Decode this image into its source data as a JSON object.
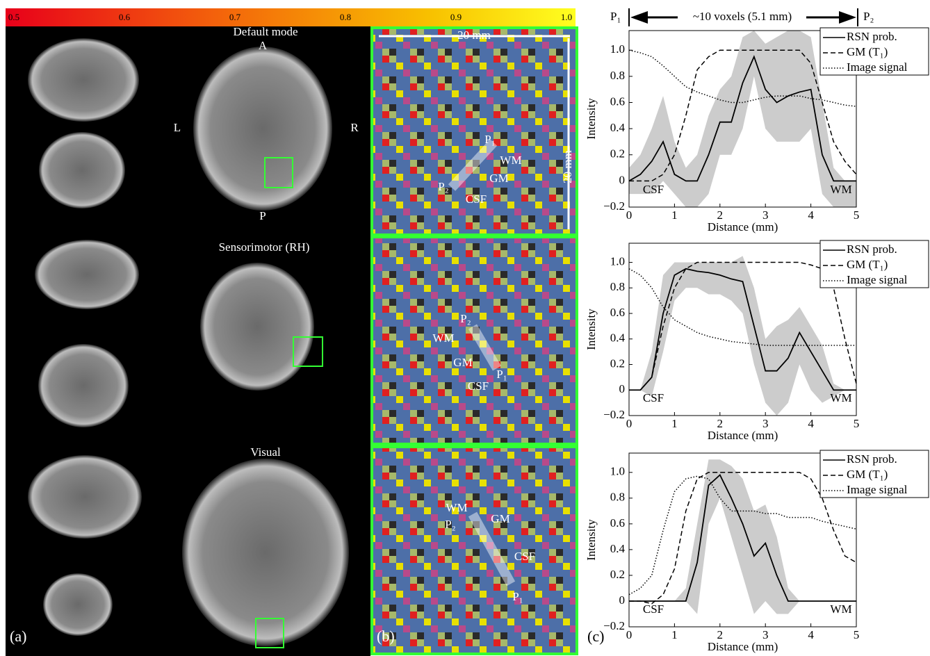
{
  "colorbar": {
    "lim": [
      0.5,
      1
    ],
    "ticks": [
      0.5,
      0.6,
      0.7,
      0.8,
      0.9,
      {
        "value": 1,
        "label": "1.0"
      }
    ]
  },
  "panel_a": {
    "label": "(a)",
    "default_mode": "Default mode",
    "sensorimotor": "Sensorimotor (RH)",
    "visual": "Visual",
    "anterior": "A",
    "posterior": "P",
    "left": "L",
    "right": "R"
  },
  "panel_b": {
    "label": "(b)",
    "scale_x": "20 mm",
    "scale_y": "20 mm",
    "panels": [
      {
        "p1": "P₁",
        "p2": "P₂",
        "wm": "WM",
        "gm": "GM",
        "csf": "CSF"
      },
      {
        "p1": "P₁",
        "p2": "P₂",
        "wm": "WM",
        "gm": "GM",
        "csf": "CSF"
      },
      {
        "p1": "P₁",
        "p2": "P₂",
        "wm": "WM",
        "gm": "GM",
        "csf": "CSF"
      }
    ]
  },
  "panel_c": {
    "label": "(c)",
    "p1": "P₁",
    "p2": "P₂",
    "span": "~10 voxels (5.1 mm)"
  },
  "chart_data": [
    {
      "type": "line",
      "x_label": "Distance (mm)",
      "y_label": "Intensity",
      "annotations": [
        "CSF",
        "WM"
      ],
      "x": [
        0,
        0.25,
        0.5,
        0.75,
        1,
        1.25,
        1.5,
        1.75,
        2,
        2.25,
        2.5,
        2.75,
        3,
        3.25,
        3.5,
        3.75,
        4,
        4.25,
        4.5,
        4.75,
        5
      ],
      "xlim": [
        0,
        5
      ],
      "xticks": [
        0,
        1,
        2,
        3,
        4,
        5
      ],
      "ylim": [
        -0.2,
        1.15
      ],
      "yticks": [
        {
          "value": -0.2,
          "label": "−0.2"
        },
        0,
        0.2,
        0.4,
        0.6,
        0.8,
        {
          "value": 1,
          "label": "1.0"
        }
      ],
      "band": {
        "color": "#cccccc",
        "lower": [
          -0.1,
          -0.1,
          -0.1,
          0,
          -0.1,
          -0.2,
          -0.2,
          -0.1,
          0.2,
          0.2,
          0.4,
          0.8,
          0.4,
          0.3,
          0.3,
          0.3,
          0.4,
          -0.1,
          -0.2,
          -0.2,
          -0.2
        ],
        "upper": [
          0.1,
          0.2,
          0.4,
          0.65,
          0.3,
          0.1,
          0.2,
          0.5,
          0.7,
          0.8,
          1.1,
          1.15,
          1.05,
          1.1,
          1.15,
          1.15,
          1.1,
          0.6,
          0.1,
          0,
          0
        ]
      },
      "series": [
        {
          "name": "RSN prob.",
          "color": "#000000",
          "dash": "solid",
          "values": [
            0,
            0.05,
            0.15,
            0.3,
            0.05,
            0,
            0,
            0.2,
            0.45,
            0.45,
            0.75,
            0.95,
            0.7,
            0.6,
            0.65,
            0.68,
            0.7,
            0.2,
            0,
            0,
            0
          ]
        },
        {
          "name": "GM (T₁)",
          "color": "#000000",
          "dash": "dashed",
          "values": [
            0,
            0,
            0,
            0.05,
            0.2,
            0.5,
            0.85,
            0.95,
            1,
            1,
            1,
            1,
            1,
            1,
            1,
            1,
            0.9,
            0.6,
            0.3,
            0.15,
            0.05
          ]
        },
        {
          "name": "Image signal",
          "color": "#000000",
          "dash": "dotted",
          "values": [
            1,
            0.98,
            0.95,
            0.88,
            0.8,
            0.72,
            0.68,
            0.65,
            0.62,
            0.6,
            0.6,
            0.62,
            0.64,
            0.65,
            0.65,
            0.65,
            0.63,
            0.62,
            0.6,
            0.58,
            0.57
          ]
        }
      ]
    },
    {
      "type": "line",
      "x_label": "Distance (mm)",
      "y_label": "Intensity",
      "annotations": [
        "CSF",
        "WM"
      ],
      "x": [
        0,
        0.25,
        0.5,
        0.75,
        1,
        1.25,
        1.5,
        1.75,
        2,
        2.25,
        2.5,
        2.75,
        3,
        3.25,
        3.5,
        3.75,
        4,
        4.25,
        4.5,
        4.75,
        5
      ],
      "xlim": [
        0,
        5
      ],
      "xticks": [
        0,
        1,
        2,
        3,
        4,
        5
      ],
      "ylim": [
        -0.2,
        1.15
      ],
      "yticks": [
        {
          "value": -0.2,
          "label": "−0.2"
        },
        0,
        0.2,
        0.4,
        0.6,
        0.8,
        {
          "value": 1,
          "label": "1.0"
        }
      ],
      "band": {
        "color": "#cccccc",
        "lower": [
          0,
          0,
          -0.05,
          0.3,
          0.7,
          0.8,
          0.8,
          0.75,
          0.75,
          0.7,
          0.6,
          0.2,
          -0.1,
          -0.2,
          -0.1,
          0.2,
          0,
          -0.1,
          -0.05,
          0,
          0
        ],
        "upper": [
          0,
          0,
          0.3,
          0.9,
          1,
          1,
          1,
          1,
          1,
          1,
          1.05,
          0.8,
          0.4,
          0.5,
          0.55,
          0.65,
          0.5,
          0.35,
          0.05,
          0,
          0
        ]
      },
      "series": [
        {
          "name": "RSN prob.",
          "color": "#000000",
          "dash": "solid",
          "values": [
            0,
            0,
            0.1,
            0.6,
            0.9,
            0.95,
            0.93,
            0.92,
            0.9,
            0.87,
            0.85,
            0.5,
            0.15,
            0.15,
            0.25,
            0.45,
            0.3,
            0.15,
            0,
            0,
            0
          ]
        },
        {
          "name": "GM (T₁)",
          "color": "#000000",
          "dash": "dashed",
          "values": [
            0,
            0,
            0.1,
            0.5,
            0.8,
            0.95,
            1,
            1,
            1,
            1,
            1,
            1,
            1,
            1,
            1,
            1,
            0.98,
            0.95,
            0.8,
            0.4,
            0.05
          ]
        },
        {
          "name": "Image signal",
          "color": "#000000",
          "dash": "dotted",
          "values": [
            0.95,
            0.9,
            0.8,
            0.65,
            0.55,
            0.5,
            0.45,
            0.42,
            0.4,
            0.38,
            0.37,
            0.36,
            0.35,
            0.35,
            0.35,
            0.35,
            0.35,
            0.35,
            0.35,
            0.35,
            0.35
          ]
        }
      ]
    },
    {
      "type": "line",
      "x_label": "Distance (mm)",
      "y_label": "Intensity",
      "annotations": [
        "CSF",
        "WM"
      ],
      "x": [
        0,
        0.25,
        0.5,
        0.75,
        1,
        1.25,
        1.5,
        1.75,
        2,
        2.25,
        2.5,
        2.75,
        3,
        3.25,
        3.5,
        3.75,
        4,
        4.25,
        4.5,
        4.75,
        5
      ],
      "xlim": [
        0,
        5
      ],
      "xticks": [
        0,
        1,
        2,
        3,
        4,
        5
      ],
      "ylim": [
        -0.2,
        1.15
      ],
      "yticks": [
        {
          "value": -0.2,
          "label": "−0.2"
        },
        0,
        0.2,
        0.4,
        0.6,
        0.8,
        {
          "value": 1,
          "label": "1.0"
        }
      ],
      "band": {
        "color": "#cccccc",
        "lower": [
          0,
          0,
          0,
          0,
          0,
          0,
          -0.1,
          0.6,
          0.8,
          0.5,
          0.2,
          -0.1,
          0,
          -0.1,
          -0.1,
          0,
          0,
          0,
          0,
          0,
          0
        ],
        "upper": [
          0,
          0,
          0,
          0,
          0,
          0.1,
          0.6,
          1.1,
          1.1,
          1.05,
          0.95,
          0.7,
          0.75,
          0.5,
          0.1,
          0,
          0,
          0,
          0,
          0,
          0
        ]
      },
      "series": [
        {
          "name": "RSN prob.",
          "color": "#000000",
          "dash": "solid",
          "values": [
            0,
            0,
            0,
            0,
            0,
            0,
            0.3,
            0.9,
            0.98,
            0.8,
            0.6,
            0.35,
            0.45,
            0.2,
            0,
            0,
            0,
            0,
            0,
            0,
            0
          ]
        },
        {
          "name": "GM (T₁)",
          "color": "#000000",
          "dash": "dashed",
          "values": [
            0,
            0,
            -0.02,
            0.05,
            0.25,
            0.7,
            0.95,
            1,
            1,
            1,
            1,
            1,
            1,
            1,
            1,
            1,
            0.95,
            0.8,
            0.55,
            0.35,
            0.3
          ]
        },
        {
          "name": "Image signal",
          "color": "#000000",
          "dash": "dotted",
          "values": [
            0.05,
            0.1,
            0.2,
            0.55,
            0.85,
            0.95,
            0.97,
            0.95,
            0.8,
            0.7,
            0.7,
            0.7,
            0.68,
            0.68,
            0.65,
            0.65,
            0.65,
            0.62,
            0.6,
            0.58,
            0.56
          ]
        }
      ]
    }
  ]
}
